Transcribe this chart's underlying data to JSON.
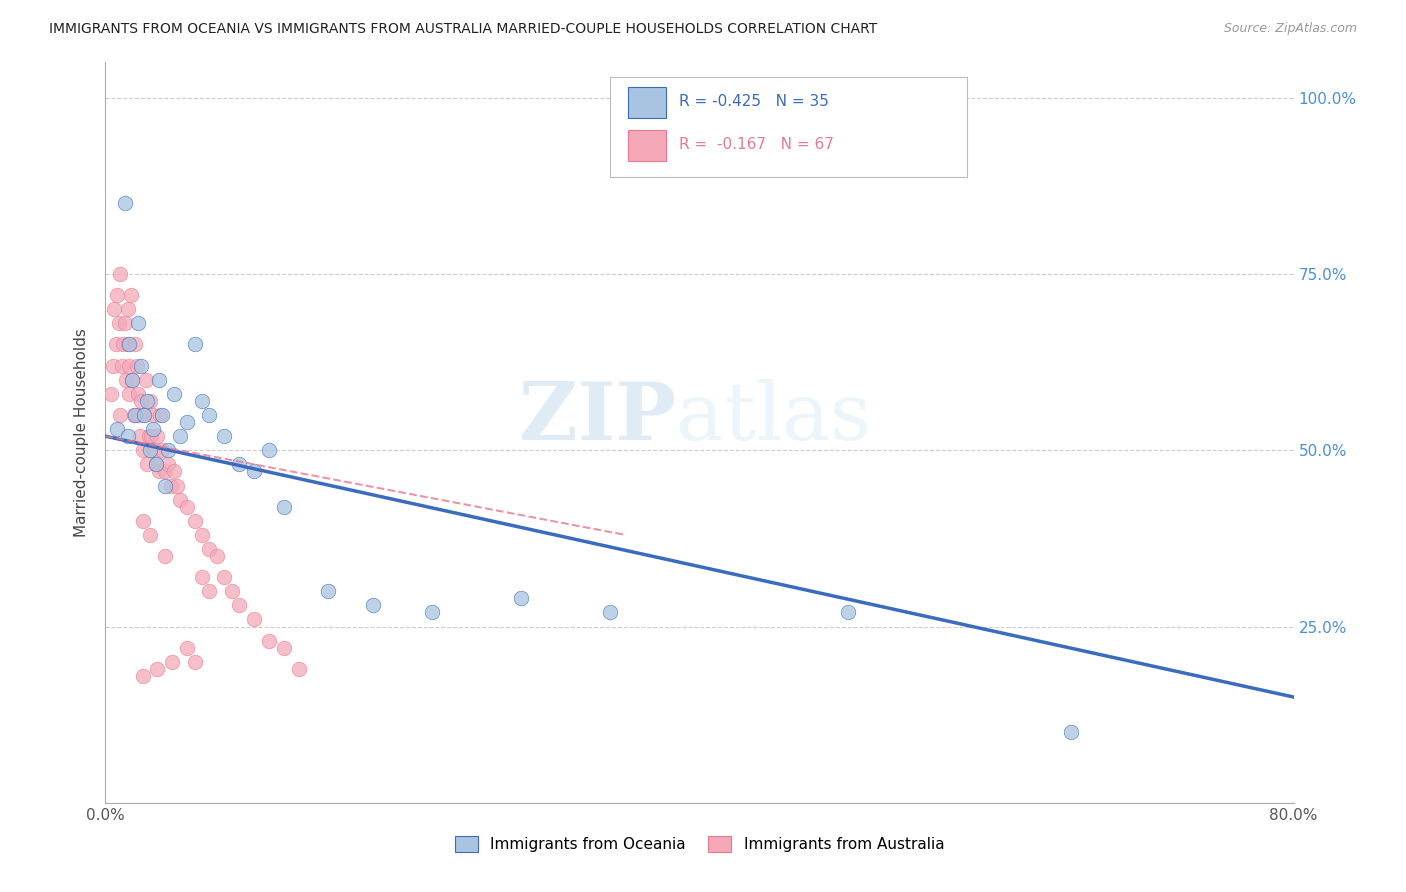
{
  "title": "IMMIGRANTS FROM OCEANIA VS IMMIGRANTS FROM AUSTRALIA MARRIED-COUPLE HOUSEHOLDS CORRELATION CHART",
  "source": "Source: ZipAtlas.com",
  "ylabel": "Married-couple Households",
  "x_min": 0.0,
  "x_max": 0.8,
  "y_min": 0.0,
  "y_max": 1.05,
  "x_ticks": [
    0.0,
    0.2,
    0.4,
    0.6,
    0.8
  ],
  "x_tick_labels": [
    "0.0%",
    "",
    "",
    "",
    "80.0%"
  ],
  "y_ticks": [
    0.0,
    0.25,
    0.5,
    0.75,
    1.0
  ],
  "y_tick_labels_right": [
    "",
    "25.0%",
    "50.0%",
    "75.0%",
    "100.0%"
  ],
  "color_oceania": "#a8c4e0",
  "color_australia": "#f4a8b8",
  "color_line_oceania": "#3a6bbf",
  "color_line_australia": "#e87a90",
  "watermark_zip": "ZIP",
  "watermark_atlas": "atlas",
  "oceania_x": [
    0.008,
    0.013,
    0.015,
    0.016,
    0.018,
    0.02,
    0.022,
    0.024,
    0.026,
    0.028,
    0.03,
    0.032,
    0.034,
    0.036,
    0.038,
    0.04,
    0.042,
    0.046,
    0.05,
    0.055,
    0.06,
    0.065,
    0.07,
    0.08,
    0.09,
    0.1,
    0.11,
    0.12,
    0.15,
    0.18,
    0.22,
    0.28,
    0.34,
    0.5,
    0.65
  ],
  "oceania_y": [
    0.53,
    0.85,
    0.52,
    0.65,
    0.6,
    0.55,
    0.68,
    0.62,
    0.55,
    0.57,
    0.5,
    0.53,
    0.48,
    0.6,
    0.55,
    0.45,
    0.5,
    0.58,
    0.52,
    0.54,
    0.65,
    0.57,
    0.55,
    0.52,
    0.48,
    0.47,
    0.5,
    0.42,
    0.3,
    0.28,
    0.27,
    0.29,
    0.27,
    0.27,
    0.1
  ],
  "australia_x": [
    0.004,
    0.005,
    0.006,
    0.007,
    0.008,
    0.009,
    0.01,
    0.01,
    0.011,
    0.012,
    0.013,
    0.014,
    0.015,
    0.015,
    0.016,
    0.016,
    0.017,
    0.018,
    0.019,
    0.02,
    0.021,
    0.022,
    0.022,
    0.023,
    0.024,
    0.025,
    0.026,
    0.027,
    0.028,
    0.029,
    0.03,
    0.031,
    0.032,
    0.033,
    0.034,
    0.035,
    0.036,
    0.037,
    0.038,
    0.04,
    0.042,
    0.044,
    0.046,
    0.048,
    0.05,
    0.055,
    0.06,
    0.065,
    0.07,
    0.075,
    0.08,
    0.085,
    0.09,
    0.1,
    0.11,
    0.12,
    0.13,
    0.065,
    0.04,
    0.03,
    0.025,
    0.07,
    0.055,
    0.045,
    0.035,
    0.025,
    0.06
  ],
  "australia_y": [
    0.58,
    0.62,
    0.7,
    0.65,
    0.72,
    0.68,
    0.55,
    0.75,
    0.62,
    0.65,
    0.68,
    0.6,
    0.7,
    0.65,
    0.58,
    0.62,
    0.72,
    0.6,
    0.55,
    0.65,
    0.62,
    0.58,
    0.55,
    0.52,
    0.57,
    0.5,
    0.55,
    0.6,
    0.48,
    0.52,
    0.57,
    0.52,
    0.55,
    0.5,
    0.48,
    0.52,
    0.47,
    0.55,
    0.5,
    0.47,
    0.48,
    0.45,
    0.47,
    0.45,
    0.43,
    0.42,
    0.4,
    0.38,
    0.36,
    0.35,
    0.32,
    0.3,
    0.28,
    0.26,
    0.23,
    0.22,
    0.19,
    0.32,
    0.35,
    0.38,
    0.4,
    0.3,
    0.22,
    0.2,
    0.19,
    0.18,
    0.2
  ],
  "oceania_trendline_x": [
    0.0,
    0.8
  ],
  "oceania_trendline_y": [
    0.52,
    0.15
  ],
  "australia_trendline_x": [
    0.0,
    0.35
  ],
  "australia_trendline_y": [
    0.52,
    0.38
  ]
}
